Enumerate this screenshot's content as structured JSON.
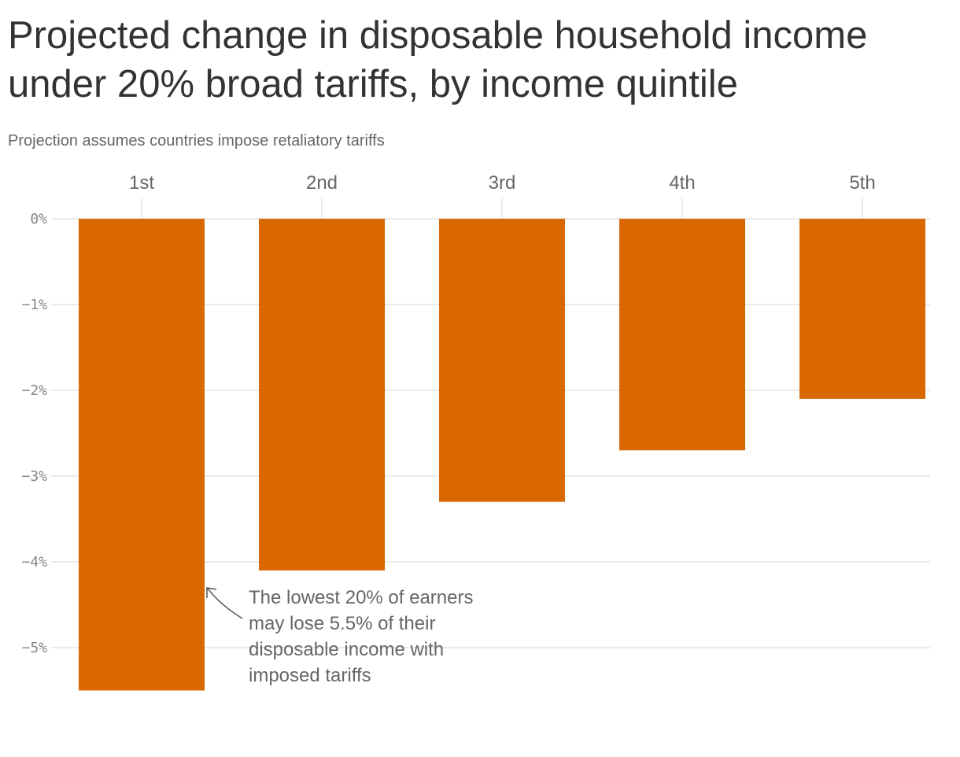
{
  "chart_data": {
    "type": "bar",
    "title": "Projected change in disposable household income under 20% broad tariffs, by income quintile",
    "subtitle": "Projection assumes countries impose retaliatory tariffs",
    "categories": [
      "1st",
      "2nd",
      "3rd",
      "4th",
      "5th"
    ],
    "values": [
      -5.5,
      -4.1,
      -3.3,
      -2.7,
      -2.1
    ],
    "unit": "%",
    "xlabel": "",
    "ylabel": "",
    "ylim": [
      -5.5,
      0
    ],
    "yticks": [
      0,
      -1,
      -2,
      -3,
      -4,
      -5
    ],
    "ytick_labels": [
      "0%",
      "−1%",
      "−2%",
      "−3%",
      "−4%",
      "−5%"
    ],
    "x_axis_position": "top",
    "grid": true,
    "bar_color": "#D96800",
    "annotation": {
      "target": "1st",
      "lines": [
        "The lowest 20% of earners",
        "may lose 5.5% of their",
        "disposable income with",
        "imposed tariffs"
      ]
    }
  }
}
